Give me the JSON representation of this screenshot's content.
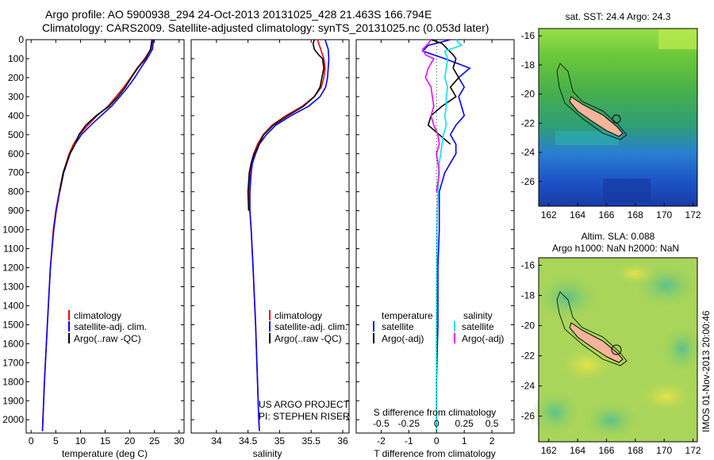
{
  "header": {
    "line1": "Argo profile: AO 5900938_294 24-Oct-2013 20131025_428 21.463S 166.794E",
    "line2": "Climatology: CARS2009. Satellite-adjusted climatology: synTS_20131025.nc (0.053d later)"
  },
  "colors": {
    "climatology": "#ff0000",
    "satellite": "#0000ff",
    "argo": "#000000",
    "sat_s": "#00e5ee",
    "argo_s": "#ff00ff"
  },
  "depth_axis": {
    "ticks": [
      0,
      100,
      200,
      300,
      400,
      500,
      600,
      700,
      800,
      900,
      1000,
      1100,
      1200,
      1300,
      1400,
      1500,
      1600,
      1700,
      1800,
      1900,
      2000
    ],
    "ylim": [
      0,
      2070
    ]
  },
  "chart_data": [
    {
      "type": "line",
      "id": "temperature",
      "xlabel": "temperature (deg C)",
      "xlim": [
        -1,
        31
      ],
      "xticks": [
        0,
        5,
        10,
        15,
        20,
        25,
        30
      ],
      "legend": [
        "climatology",
        "satellite-adj. clim.",
        "Argo(..raw -QC)"
      ],
      "series": [
        {
          "name": "climatology",
          "color": "#ff0000",
          "depth": [
            0,
            50,
            100,
            150,
            200,
            250,
            300,
            350,
            400,
            450,
            500,
            550,
            600,
            700,
            800,
            900,
            1000,
            1200,
            1500,
            1800,
            2000,
            2060
          ],
          "values": [
            24.6,
            24.3,
            23.0,
            21.5,
            20.2,
            18.8,
            17.2,
            15.6,
            13.4,
            11.5,
            9.8,
            8.6,
            7.7,
            6.5,
            5.7,
            5.0,
            4.5,
            3.9,
            3.3,
            2.7,
            2.4,
            2.3
          ]
        },
        {
          "name": "satellite-adj. clim.",
          "color": "#0000ff",
          "depth": [
            0,
            50,
            100,
            150,
            200,
            250,
            300,
            350,
            400,
            450,
            500,
            550,
            600,
            700,
            800,
            900,
            1000,
            1200,
            1500,
            1800,
            2000,
            2060
          ],
          "values": [
            24.8,
            24.6,
            23.5,
            22.2,
            21.0,
            19.6,
            18.0,
            16.3,
            14.2,
            12.1,
            10.2,
            8.9,
            7.9,
            6.6,
            5.8,
            5.1,
            4.6,
            3.9,
            3.3,
            2.7,
            2.4,
            2.3
          ]
        },
        {
          "name": "Argo(..raw -QC)",
          "color": "#000000",
          "depth": [
            0,
            50,
            100,
            150,
            200,
            250,
            300,
            350,
            400,
            450,
            500,
            550,
            600,
            700,
            800
          ],
          "values": [
            24.5,
            24.2,
            23.2,
            21.6,
            20.3,
            19.1,
            17.6,
            15.8,
            13.2,
            11.1,
            9.7,
            8.9,
            7.9,
            6.5,
            5.8
          ]
        }
      ]
    },
    {
      "type": "line",
      "id": "salinity",
      "xlabel": "salinity",
      "xlim": [
        33.6,
        36.1
      ],
      "xticks": [
        34,
        34.5,
        35,
        35.5,
        36
      ],
      "legend": [
        "climatology",
        "satellite-adj. clim.",
        "Argo(..raw -QC)"
      ],
      "annotation": [
        "US ARGO PROJECT",
        "PI: STEPHEN RISER"
      ],
      "series": [
        {
          "name": "climatology",
          "color": "#ff0000",
          "depth": [
            0,
            50,
            100,
            150,
            200,
            250,
            300,
            350,
            400,
            450,
            500,
            550,
            600,
            650,
            700,
            800,
            900,
            1000,
            1200,
            1500,
            1800,
            2000,
            2060
          ],
          "values": [
            35.6,
            35.65,
            35.7,
            35.72,
            35.7,
            35.66,
            35.55,
            35.36,
            35.1,
            34.88,
            34.74,
            34.65,
            34.59,
            34.55,
            34.53,
            34.52,
            34.53,
            34.55,
            34.58,
            34.62,
            34.65,
            34.67,
            34.68
          ]
        },
        {
          "name": "satellite-adj. clim.",
          "color": "#0000ff",
          "depth": [
            0,
            50,
            100,
            150,
            200,
            250,
            300,
            350,
            400,
            450,
            500,
            550,
            600,
            650,
            700,
            800,
            900,
            1000,
            1200,
            1500,
            1800,
            2000,
            2060
          ],
          "values": [
            35.72,
            35.77,
            35.78,
            35.77,
            35.76,
            35.73,
            35.64,
            35.46,
            35.18,
            34.94,
            34.79,
            34.68,
            34.62,
            34.57,
            34.55,
            34.53,
            34.53,
            34.55,
            34.58,
            34.62,
            34.65,
            34.67,
            34.68
          ]
        },
        {
          "name": "Argo(..raw -QC)",
          "color": "#000000",
          "depth": [
            0,
            20,
            50,
            80,
            100,
            150,
            200,
            250,
            300,
            350,
            400,
            450,
            500,
            550,
            600,
            650,
            700,
            800,
            900
          ],
          "values": [
            35.55,
            35.53,
            35.55,
            35.62,
            35.68,
            35.7,
            35.67,
            35.64,
            35.55,
            35.38,
            35.13,
            34.9,
            34.75,
            34.67,
            34.6,
            34.55,
            34.52,
            34.5,
            34.51
          ]
        }
      ]
    },
    {
      "type": "line",
      "id": "difference",
      "xlabel": "T difference from climatology",
      "xlabel_top": "S difference from climatology",
      "xlim": [
        -2.9,
        2.8
      ],
      "xticks": [
        -2,
        -1,
        0,
        1,
        2
      ],
      "xticks_top": [
        -0.5,
        -0.25,
        0,
        0.25,
        0.5
      ],
      "legend_t": [
        "temperature",
        "satellite",
        "Argo(-adj)"
      ],
      "legend_s": [
        "salinity",
        "satellite",
        "Argo(-adj)"
      ],
      "series": [
        {
          "name": "satellite T",
          "color": "#0000ff",
          "depth": [
            0,
            30,
            60,
            100,
            150,
            200,
            250,
            300,
            350,
            400,
            450,
            500,
            550,
            600,
            650,
            700,
            750,
            800,
            900,
            1000,
            1200,
            1500,
            1800,
            2000,
            2060
          ],
          "values": [
            0.5,
            -0.3,
            -0.5,
            0.3,
            1.2,
            0.8,
            1.0,
            0.8,
            0.9,
            1.0,
            0.7,
            0.5,
            0.7,
            0.7,
            0.5,
            0.3,
            0.2,
            0.1,
            0.1,
            0.1,
            0.05,
            0.05,
            0.0,
            0.0,
            0.0
          ]
        },
        {
          "name": "Argo T",
          "color": "#000000",
          "depth": [
            0,
            20,
            50,
            80,
            100,
            150,
            200,
            250,
            300,
            350,
            400,
            450,
            500,
            550
          ],
          "values": [
            -0.2,
            0.2,
            0.4,
            0.6,
            0.7,
            0.6,
            0.8,
            0.5,
            0.7,
            0.2,
            -0.2,
            -0.3,
            0.1,
            0.5
          ]
        },
        {
          "name": "satellite S",
          "color": "#00e5ee",
          "depth": [
            0,
            30,
            60,
            100,
            150,
            200,
            250,
            300,
            350,
            400,
            450,
            500,
            550,
            600,
            650,
            700,
            800,
            900,
            1000,
            1200,
            1500,
            1800,
            2000,
            2060
          ],
          "values": [
            0.7,
            0.9,
            0.3,
            0.4,
            0.35,
            0.3,
            0.4,
            0.35,
            0.35,
            0.3,
            0.35,
            0.25,
            0.2,
            0.15,
            0.1,
            0.08,
            0.05,
            0.03,
            0.02,
            0.01,
            0.0,
            0.0,
            0.0,
            0.0
          ]
        },
        {
          "name": "Argo S",
          "color": "#ff00ff",
          "depth": [
            0,
            20,
            50,
            80,
            100,
            150,
            200,
            250,
            300,
            350,
            400,
            450,
            500,
            550,
            600,
            650,
            700,
            750,
            800
          ],
          "values": [
            -0.2,
            -0.3,
            -0.5,
            -0.4,
            -0.1,
            -0.3,
            -0.4,
            -0.2,
            -0.15,
            -0.1,
            -0.2,
            -0.1,
            0.05,
            0.1,
            0.0,
            0.05,
            0.1,
            0.05,
            0.0
          ]
        }
      ]
    },
    {
      "type": "heatmap",
      "id": "sst_map",
      "title": "sat. SST: 24.4  Argo: 24.3",
      "xlim": [
        161.3,
        172.3
      ],
      "ylim": [
        -27.7,
        -15.5
      ],
      "xticks": [
        162,
        164,
        166,
        168,
        170,
        172
      ],
      "yticks": [
        -16,
        -18,
        -20,
        -22,
        -24,
        -26
      ]
    },
    {
      "type": "heatmap",
      "id": "sla_map",
      "title_line1": "Altim. SLA: 0.088",
      "title_line2": "Argo h1000: NaN h2000: NaN",
      "xlim": [
        161.3,
        172.3
      ],
      "ylim": [
        -27.7,
        -15.5
      ],
      "xticks": [
        162,
        164,
        166,
        168,
        170,
        172
      ],
      "yticks": [
        -16,
        -18,
        -20,
        -22,
        -24,
        -26
      ],
      "argo_position": {
        "lon": 166.794,
        "lat": -21.463
      }
    }
  ],
  "footer": {
    "watermark": "IMOS 01-Nov-2013 20:00:46"
  }
}
